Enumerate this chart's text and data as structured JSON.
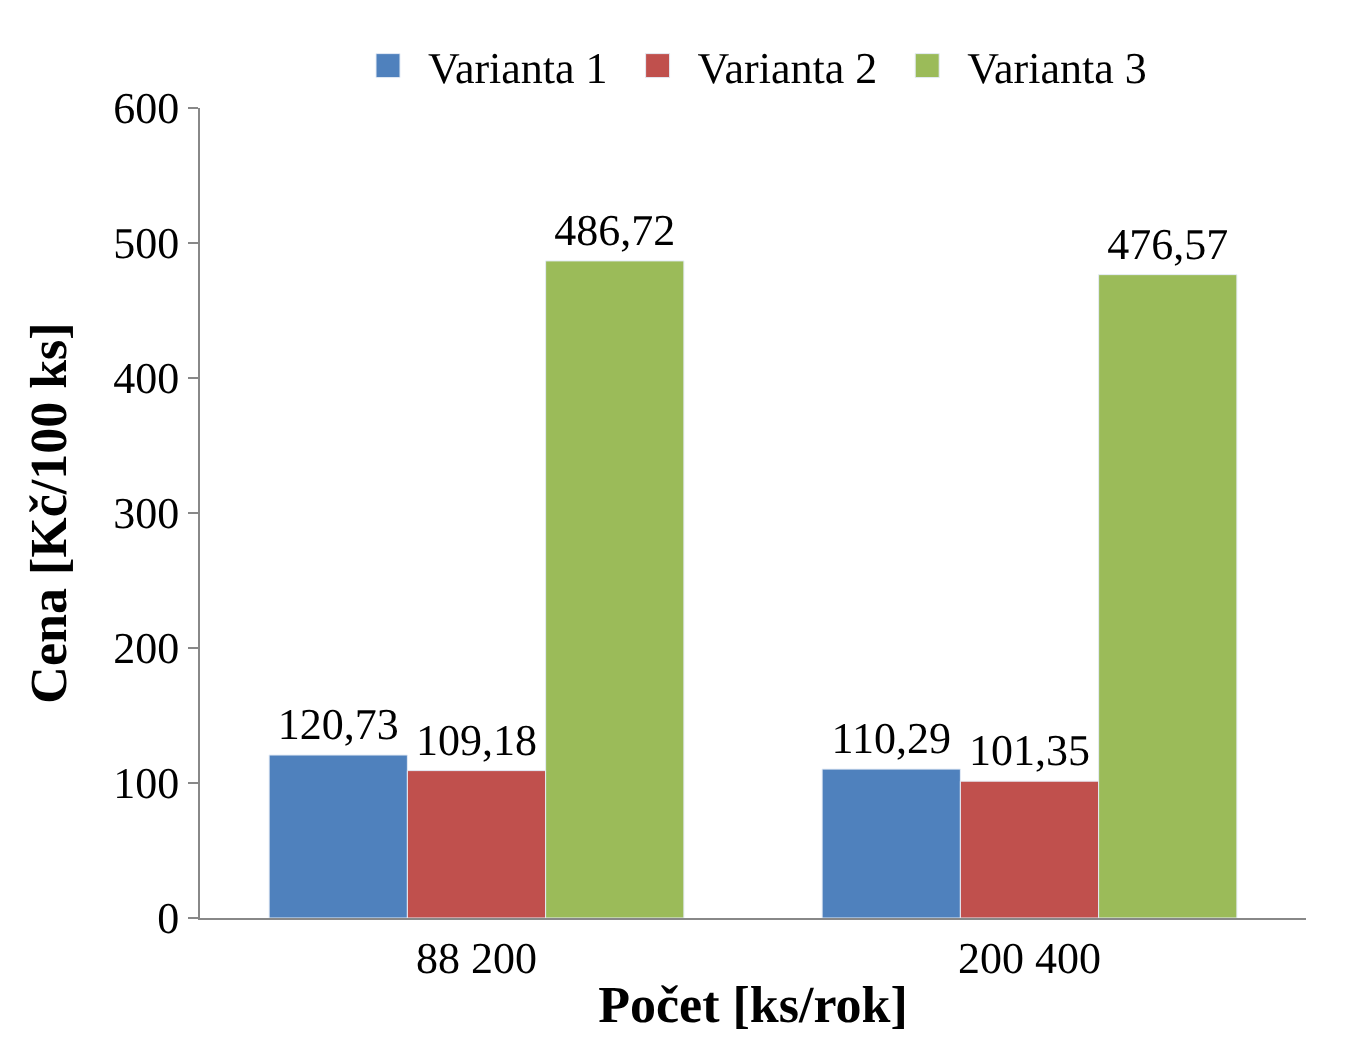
{
  "chart_data": {
    "type": "bar",
    "xlabel": "Počet [ks/rok]",
    "ylabel": "Cena [Kč/100 ks]",
    "categories": [
      "88 200",
      "200 400"
    ],
    "series": [
      {
        "name": "Varianta 1",
        "color": "#4f81bd",
        "values": [
          120.73,
          110.29
        ],
        "value_labels": [
          "120,73",
          "110,29"
        ]
      },
      {
        "name": "Varianta 2",
        "color": "#c0504d",
        "values": [
          109.18,
          101.35
        ],
        "value_labels": [
          "109,18",
          "101,35"
        ]
      },
      {
        "name": "Varianta 3",
        "color": "#9bbb59",
        "values": [
          486.72,
          476.57
        ],
        "value_labels": [
          "486,72",
          "476,57"
        ]
      }
    ],
    "ylim": [
      0,
      600
    ],
    "yticks": [
      0,
      100,
      200,
      300,
      400,
      500,
      600
    ],
    "grid": false,
    "legend": "top"
  }
}
